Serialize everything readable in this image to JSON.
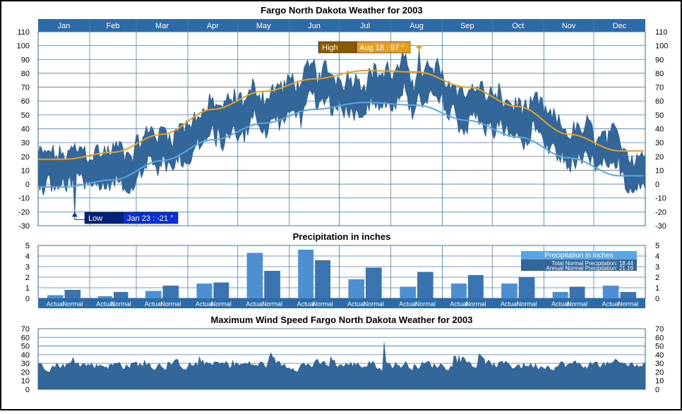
{
  "months": [
    "Jan",
    "Feb",
    "Mar",
    "Apr",
    "May",
    "Jun",
    "Jul",
    "Aug",
    "Sep",
    "Oct",
    "Nov",
    "Dec"
  ],
  "colors": {
    "header": "#2d6aa8",
    "range": "#336699",
    "normal_high": "#e6a020",
    "normal_low": "#5aa6e0",
    "precip_actual": "#4d8fd1",
    "precip_normal": "#3a74b0",
    "high_label_bg": "#8a5a00",
    "low_label_bg": "#00227a"
  },
  "chart_data": [
    {
      "type": "area",
      "title": "Fargo North Dakota Weather for 2003",
      "y_ticks": [
        110,
        100,
        90,
        80,
        70,
        60,
        50,
        40,
        30,
        20,
        10,
        0,
        -10,
        -20,
        -30
      ],
      "ylim": [
        -30,
        110
      ],
      "normal_high_monthly": [
        18,
        23,
        36,
        54,
        67,
        76,
        82,
        81,
        70,
        56,
        36,
        24
      ],
      "normal_low_monthly": [
        -2,
        3,
        17,
        32,
        44,
        54,
        59,
        57,
        46,
        34,
        19,
        6
      ],
      "record_high": {
        "label": "High",
        "date": "Aug 18",
        "value": 97,
        "text": "Aug 18 :  97 °"
      },
      "record_low": {
        "label": "Low",
        "date": "Jan 23",
        "value": -21,
        "text": "Jan 23 :  -21 °"
      }
    },
    {
      "type": "bar",
      "title": "Precipitation in inches",
      "y_ticks": [
        5,
        4,
        3,
        2,
        1,
        0
      ],
      "ylim": [
        0,
        5
      ],
      "categories": [
        "Jan",
        "Feb",
        "Mar",
        "Apr",
        "May",
        "Jun",
        "Jul",
        "Aug",
        "Sep",
        "Oct",
        "Nov",
        "Dec"
      ],
      "series": [
        {
          "name": "Actual",
          "values": [
            0.3,
            0.2,
            0.7,
            1.4,
            4.3,
            4.6,
            1.8,
            1.1,
            1.4,
            1.4,
            0.6,
            1.2
          ]
        },
        {
          "name": "Normal",
          "values": [
            0.8,
            0.6,
            1.2,
            1.5,
            2.6,
            3.6,
            2.9,
            2.5,
            2.2,
            2.0,
            1.1,
            0.6
          ]
        }
      ],
      "legend": {
        "title": "Precipitation in inches",
        "line1": "Total Normal Precipitation:  18.44",
        "line2": "Annual Normal Precipitation:  21.19"
      }
    },
    {
      "type": "area",
      "title": "Maximum Wind Speed Fargo North Dakota Weather for 2003",
      "y_ticks": [
        70,
        60,
        50,
        40,
        30,
        20,
        10,
        0
      ],
      "ylim": [
        0,
        70
      ],
      "typical_range": [
        15,
        45
      ],
      "peak": 54
    }
  ]
}
